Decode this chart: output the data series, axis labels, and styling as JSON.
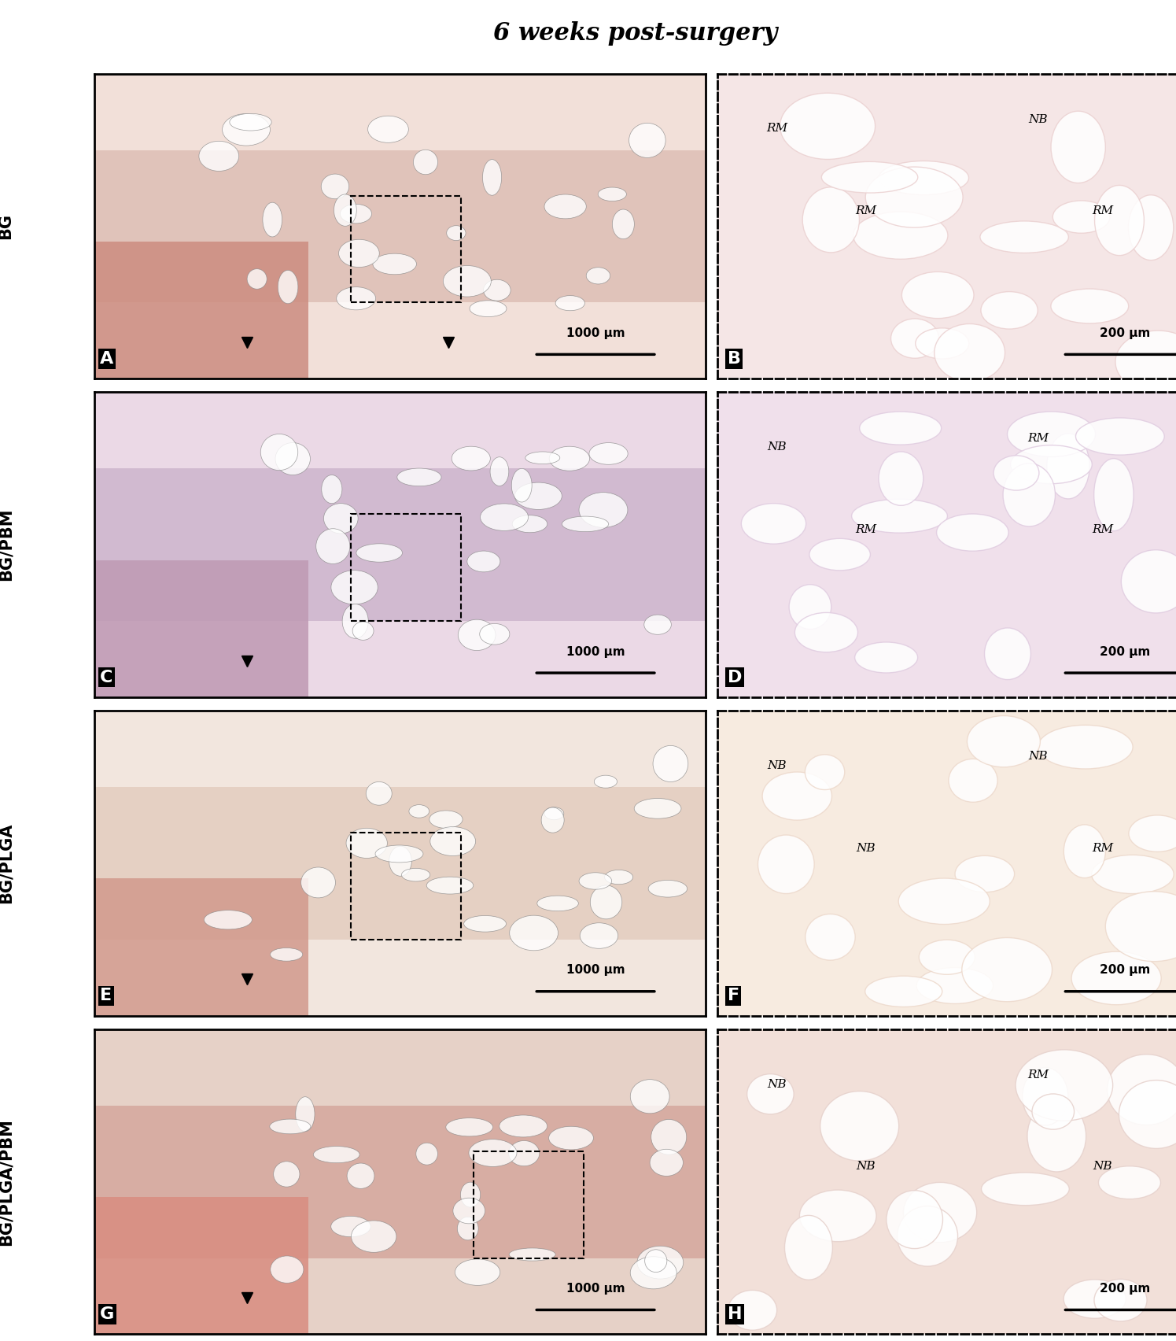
{
  "title": "6 weeks post-surgery",
  "title_fontsize": 22,
  "title_fontweight": "bold",
  "title_fontstyle": "italic",
  "row_labels": [
    "BG",
    "BG/PBM",
    "BG/PLGA",
    "BG/PLGA/PBM"
  ],
  "panel_labels_left": [
    "A",
    "C",
    "E",
    "G"
  ],
  "panel_labels_right": [
    "B",
    "D",
    "F",
    "H"
  ],
  "scale_bar_left": "1000 μm",
  "scale_bar_right": "200 μm",
  "annotations_right": [
    [
      "RM",
      "NB",
      "RM",
      "RM"
    ],
    [
      "NB",
      "RM",
      "RM",
      "RM"
    ],
    [
      "NB",
      "NB",
      "NB",
      "RM"
    ],
    [
      "NB",
      "RM",
      "NB",
      "NB"
    ]
  ],
  "figure_width": 14.95,
  "figure_height": 17.04,
  "bg_color": "#ffffff",
  "panel_border_color": "#000000",
  "dashed_border_color": "#000000",
  "left_panel_color_rows": [
    "#c8a090",
    "#b090a8",
    "#c0a898",
    "#c09080"
  ],
  "right_panel_color_rows": [
    "#d4b0b0",
    "#c8b0c8",
    "#d4c0b8",
    "#d0b8b0"
  ],
  "label_fontsize": 14,
  "row_label_fontsize": 15,
  "annotation_fontsize": 11
}
